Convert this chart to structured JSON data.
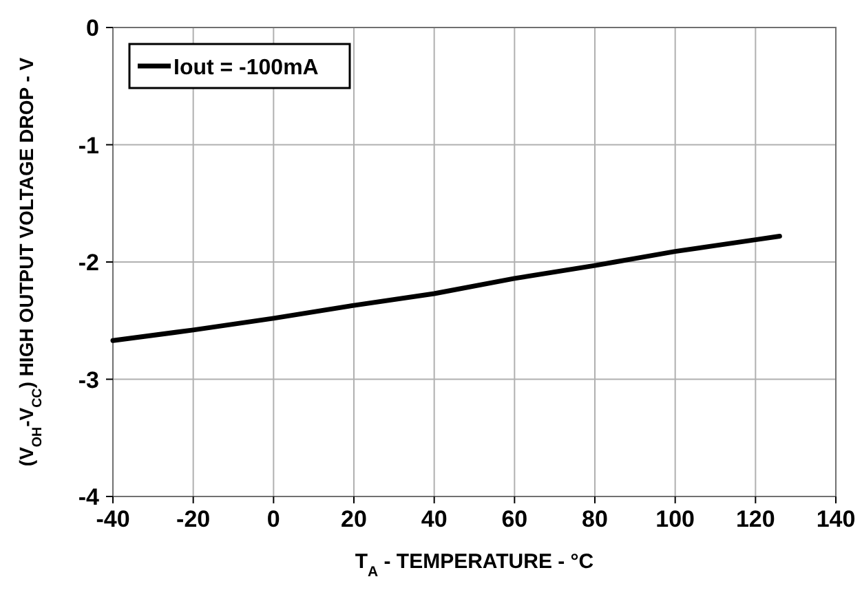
{
  "chart_data": {
    "type": "line",
    "xlabel": "T$_{A}$ - TEMPERATURE - °C",
    "ylabel": "(V$_{OH}$-V$_{CC}$) HIGH OUTPUT VOLTAGE DROP - V",
    "x": [
      -40,
      -20,
      0,
      20,
      40,
      60,
      80,
      85,
      90,
      100,
      110,
      120,
      126
    ],
    "series": [
      {
        "name": "Iout = -100mA",
        "color": "#000000",
        "values": [
          -2.67,
          -2.58,
          -2.48,
          -2.37,
          -2.27,
          -2.14,
          -2.03,
          -2.0,
          -1.97,
          -1.91,
          -1.86,
          -1.81,
          -1.78
        ]
      }
    ],
    "xlim": [
      -40,
      140
    ],
    "xticks": [
      -40,
      -20,
      0,
      20,
      40,
      60,
      80,
      100,
      120,
      140
    ],
    "ylim": [
      -4,
      0
    ],
    "yticks": [
      -4,
      -3,
      -2,
      -1,
      0
    ],
    "grid": true,
    "legend": "top left",
    "line_style": "solid",
    "marker": "none"
  }
}
